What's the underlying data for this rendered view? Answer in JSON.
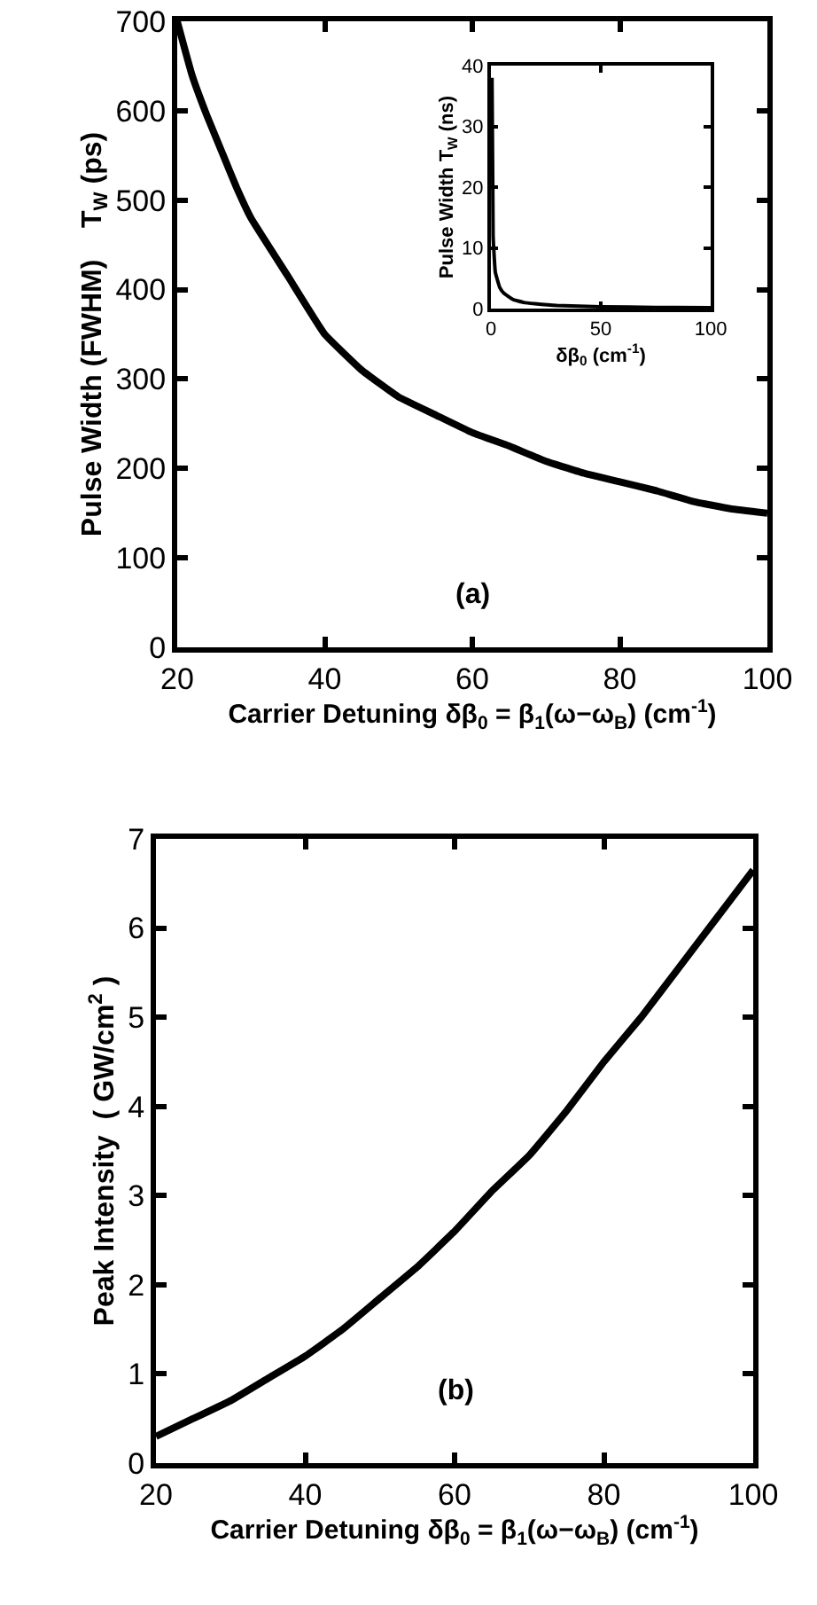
{
  "chart_data": [
    {
      "type": "line",
      "xlabel": "Carrier Detuning δβ$_{0}$ = β$_{1}$(ω−ω$_{B}$) (cm$^{-1}$)",
      "ylabel": "Pulse Width (FWHM)    T$_{W}$ (ps)",
      "annotations": [
        "(a)"
      ],
      "x": [
        20,
        22,
        24,
        26,
        28,
        30,
        35,
        40,
        45,
        50,
        55,
        60,
        65,
        70,
        75,
        80,
        85,
        90,
        95,
        100
      ],
      "series": [
        {
          "color": "#000000",
          "values": [
            700,
            640,
            595,
            555,
            515,
            480,
            415,
            350,
            310,
            280,
            260,
            240,
            225,
            208,
            195,
            185,
            175,
            163,
            155,
            150
          ]
        }
      ],
      "xlim": [
        20,
        100
      ],
      "ylim": [
        0,
        700
      ],
      "xticks": [
        20,
        40,
        60,
        80,
        100
      ],
      "yticks": [
        0,
        100,
        200,
        300,
        400,
        500,
        600,
        700
      ]
    },
    {
      "type": "line",
      "xlabel": "δβ$_{0}$ (cm$^{-1}$)",
      "ylabel": "Pulse Width T$_{W}$ (ns)",
      "x": [
        0.5,
        1,
        2,
        4,
        6,
        10,
        15,
        20,
        30,
        50,
        75,
        100
      ],
      "series": [
        {
          "color": "#000000",
          "values": [
            38,
            12,
            6,
            3.5,
            2.5,
            1.5,
            1.0,
            0.8,
            0.5,
            0.3,
            0.2,
            0.15
          ]
        }
      ],
      "xlim": [
        0,
        100
      ],
      "ylim": [
        0,
        40
      ],
      "xticks": [
        0,
        50,
        100
      ],
      "yticks": [
        0,
        10,
        20,
        30,
        40
      ]
    },
    {
      "type": "line",
      "xlabel": "Carrier Detuning δβ$_{0}$ = β$_{1}$(ω−ω$_{B}$) (cm$^{-1}$)",
      "ylabel": "Peak Intensity  ( GW/cm$^{2}$ )",
      "annotations": [
        "(b)"
      ],
      "x": [
        20,
        25,
        30,
        35,
        40,
        45,
        50,
        55,
        60,
        65,
        70,
        75,
        80,
        85,
        90,
        95,
        100
      ],
      "series": [
        {
          "color": "#000000",
          "values": [
            0.3,
            0.5,
            0.7,
            0.95,
            1.2,
            1.5,
            1.85,
            2.2,
            2.6,
            3.05,
            3.45,
            3.95,
            4.5,
            5.0,
            5.55,
            6.1,
            6.65
          ]
        }
      ],
      "xlim": [
        20,
        100
      ],
      "ylim": [
        0,
        7
      ],
      "xticks": [
        20,
        40,
        60,
        80,
        100
      ],
      "yticks": [
        0,
        1,
        2,
        3,
        4,
        5,
        6,
        7
      ]
    }
  ]
}
